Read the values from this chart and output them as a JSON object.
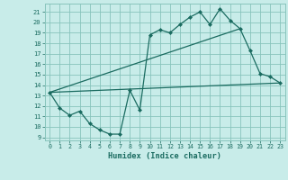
{
  "title": "",
  "xlabel": "Humidex (Indice chaleur)",
  "bg_color": "#c8ece9",
  "grid_color": "#88c4bc",
  "line_color": "#1a6b60",
  "xlim": [
    -0.5,
    23.5
  ],
  "ylim": [
    8.7,
    21.8
  ],
  "yticks": [
    9,
    10,
    11,
    12,
    13,
    14,
    15,
    16,
    17,
    18,
    19,
    20,
    21
  ],
  "xticks": [
    0,
    1,
    2,
    3,
    4,
    5,
    6,
    7,
    8,
    9,
    10,
    11,
    12,
    13,
    14,
    15,
    16,
    17,
    18,
    19,
    20,
    21,
    22,
    23
  ],
  "line1_x": [
    0,
    1,
    2,
    3,
    4,
    5,
    6,
    7,
    8,
    9,
    10,
    11,
    12,
    13,
    14,
    15,
    16,
    17,
    18,
    19,
    20,
    21,
    22,
    23
  ],
  "line1_y": [
    13.3,
    11.8,
    11.1,
    11.5,
    10.3,
    9.7,
    9.3,
    9.3,
    13.5,
    11.6,
    18.8,
    19.3,
    19.0,
    19.8,
    20.5,
    21.0,
    19.8,
    21.3,
    20.2,
    19.4,
    17.3,
    15.1,
    14.8,
    14.2
  ],
  "line2_x": [
    0,
    23
  ],
  "line2_y": [
    13.3,
    14.2
  ],
  "line3_x": [
    0,
    19
  ],
  "line3_y": [
    13.3,
    19.4
  ]
}
